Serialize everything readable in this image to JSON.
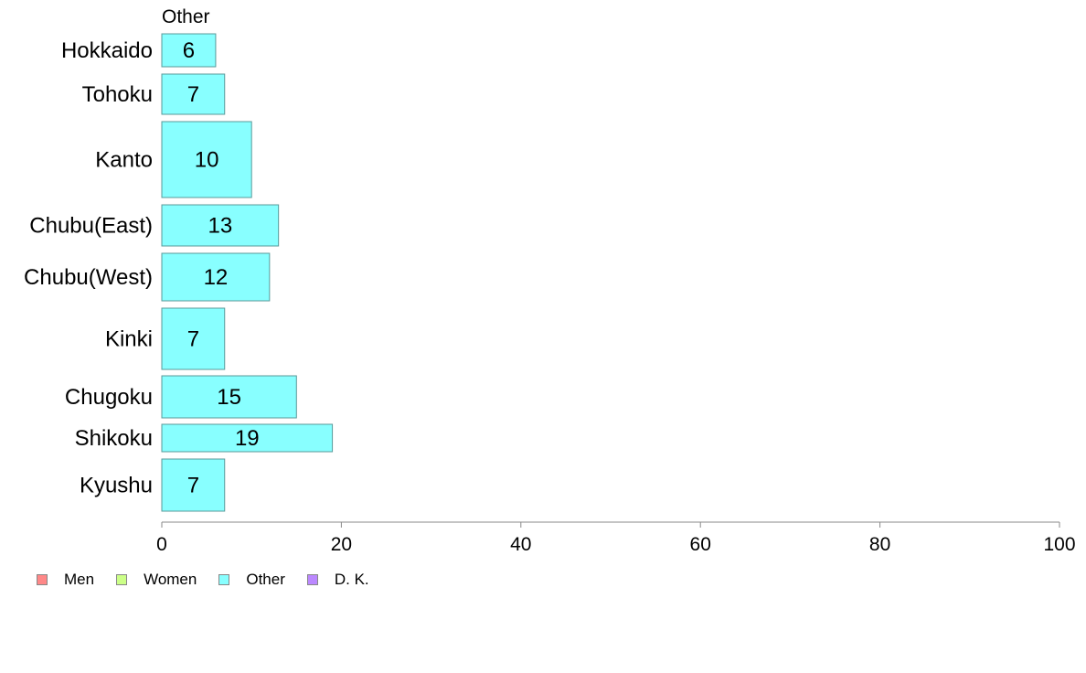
{
  "chart_data": {
    "type": "bar",
    "orientation": "horizontal",
    "panel_title": "Other",
    "categories": [
      "Hokkaido",
      "Tohoku",
      "Kanto",
      "Chubu(East)",
      "Chubu(West)",
      "Kinki",
      "Chugoku",
      "Shikoku",
      "Kyushu"
    ],
    "values": [
      6,
      7,
      10,
      13,
      12,
      7,
      15,
      19,
      7
    ],
    "data_labels": [
      "6",
      "7",
      "10",
      "13",
      "12",
      "7",
      "15",
      "19",
      "7"
    ],
    "xlim": [
      0,
      100
    ],
    "x_ticks": [
      0,
      20,
      40,
      60,
      80,
      100
    ],
    "grid": false,
    "bar_color": "#88ffff",
    "bar_border_color": "#5a9a9a",
    "legend_position": "bottom-left",
    "legend": [
      {
        "label": "Men",
        "color": "#ff8888"
      },
      {
        "label": "Women",
        "color": "#ccff88"
      },
      {
        "label": "Other",
        "color": "#88ffff"
      },
      {
        "label": "D. K.",
        "color": "#bb88ff"
      }
    ]
  }
}
